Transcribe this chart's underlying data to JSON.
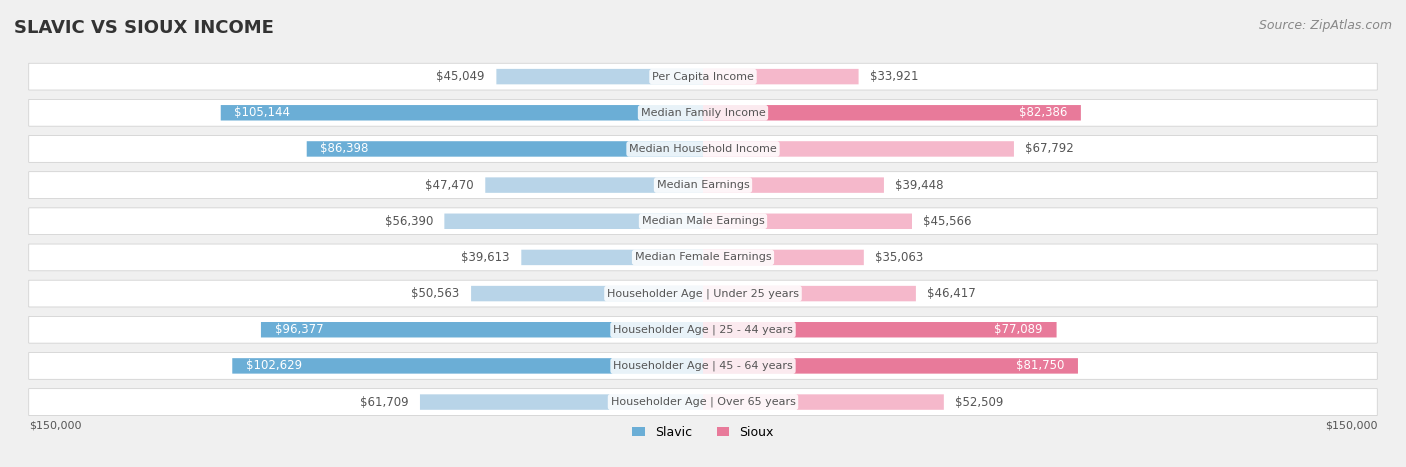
{
  "title": "SLAVIC VS SIOUX INCOME",
  "source": "Source: ZipAtlas.com",
  "categories": [
    "Per Capita Income",
    "Median Family Income",
    "Median Household Income",
    "Median Earnings",
    "Median Male Earnings",
    "Median Female Earnings",
    "Householder Age | Under 25 years",
    "Householder Age | 25 - 44 years",
    "Householder Age | 45 - 64 years",
    "Householder Age | Over 65 years"
  ],
  "slavic_values": [
    45049,
    105144,
    86398,
    47470,
    56390,
    39613,
    50563,
    96377,
    102629,
    61709
  ],
  "sioux_values": [
    33921,
    82386,
    67792,
    39448,
    45566,
    35063,
    46417,
    77089,
    81750,
    52509
  ],
  "slavic_labels": [
    "$45,049",
    "$105,144",
    "$86,398",
    "$47,470",
    "$56,390",
    "$39,613",
    "$50,563",
    "$96,377",
    "$102,629",
    "$61,709"
  ],
  "sioux_labels": [
    "$33,921",
    "$82,386",
    "$67,792",
    "$39,448",
    "$45,566",
    "$35,063",
    "$46,417",
    "$77,089",
    "$81,750",
    "$52,509"
  ],
  "max_value": 150000,
  "slavic_color_strong": "#6baed6",
  "slavic_color_light": "#b8d4e8",
  "sioux_color_strong": "#e87a9a",
  "sioux_color_light": "#f5b8cb",
  "bg_color": "#f0f0f0",
  "row_bg": "#f8f8f8",
  "x_label_left": "$150,000",
  "x_label_right": "$150,000",
  "legend_slavic": "Slavic",
  "legend_sioux": "Sioux",
  "title_fontsize": 13,
  "source_fontsize": 9,
  "bar_label_fontsize": 8.5,
  "cat_label_fontsize": 8,
  "threshold_for_strong": 70000
}
